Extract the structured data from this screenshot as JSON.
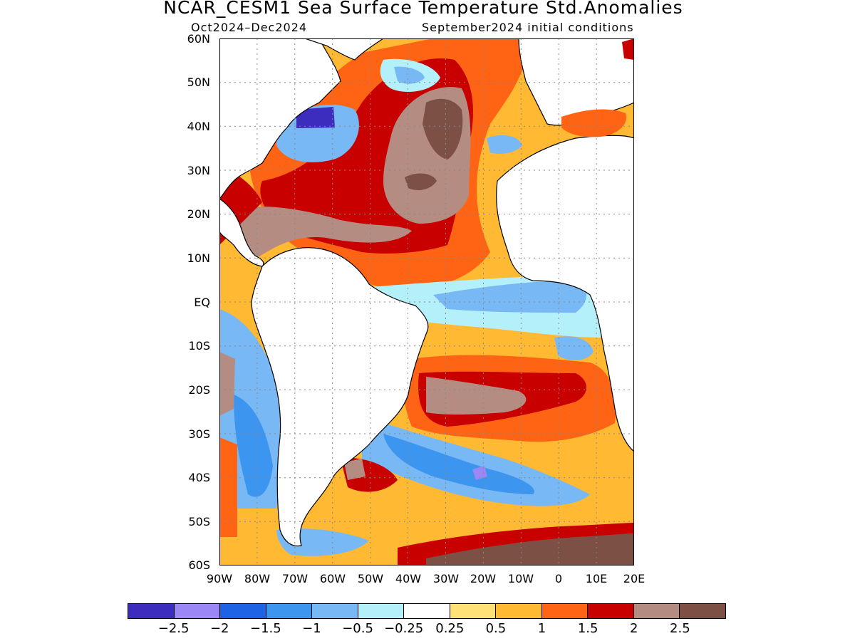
{
  "title": "NCAR_CESM1 Sea Surface Temperature Std.Anomalies",
  "subtitle_left": "Oct2024–Dec2024",
  "subtitle_right": "September2024 initial conditions",
  "map": {
    "lat_labels": [
      "60N",
      "50N",
      "40N",
      "30N",
      "20N",
      "10N",
      "EQ",
      "10S",
      "20S",
      "30S",
      "40S",
      "50S",
      "60S"
    ],
    "lon_labels": [
      "90W",
      "80W",
      "70W",
      "60W",
      "50W",
      "40W",
      "30W",
      "20W",
      "10W",
      "0",
      "10E",
      "20E"
    ],
    "extent": {
      "lon": [
        -90,
        20
      ],
      "lat": [
        -60,
        60
      ]
    },
    "grid": "dotted"
  },
  "colorbar": {
    "colors": [
      "#3c2dbf",
      "#9b87f5",
      "#1e63e6",
      "#3c96f0",
      "#78b9f5",
      "#b4f0fa",
      "#ffffff",
      "#ffe178",
      "#ffb932",
      "#ff6414",
      "#c80000",
      "#b48c82",
      "#7d5046"
    ],
    "labels": [
      "−2.5",
      "−2",
      "−1.5",
      "−1",
      "−0.5",
      "−0.25",
      "0.25",
      "0.5",
      "1",
      "1.5",
      "2",
      "2.5"
    ]
  },
  "colors": {
    "land": "#ffffff",
    "coast": "#000000"
  }
}
